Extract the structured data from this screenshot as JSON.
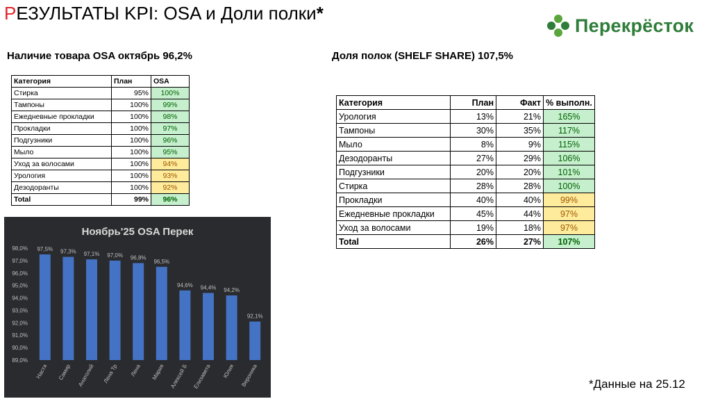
{
  "header": {
    "title_first_letter": "Р",
    "title_rest": "ЕЗУЛЬТАТЫ KPI: OSA и Доли полки",
    "title_star": "*"
  },
  "logo": {
    "text": "Перекрёсток",
    "icon": "clover-logo-icon",
    "color": "#2f7d3a"
  },
  "osa": {
    "title": "Наличие товара OSA октябрь 96,2%",
    "headers": {
      "category": "Категория",
      "plan": "План",
      "osa": "OSA"
    },
    "rows": [
      {
        "category": "Стирка",
        "plan": "95%",
        "osa": "100%",
        "status": "green"
      },
      {
        "category": "Тампоны",
        "plan": "100%",
        "osa": "99%",
        "status": "green"
      },
      {
        "category": "Ежедневные прокладки",
        "plan": "100%",
        "osa": "98%",
        "status": "green"
      },
      {
        "category": "Прокладки",
        "plan": "100%",
        "osa": "97%",
        "status": "green"
      },
      {
        "category": "Подгузники",
        "plan": "100%",
        "osa": "96%",
        "status": "green"
      },
      {
        "category": "Мыло",
        "plan": "100%",
        "osa": "95%",
        "status": "green"
      },
      {
        "category": "Уход за волосами",
        "plan": "100%",
        "osa": "94%",
        "status": "yellow"
      },
      {
        "category": "Урология",
        "plan": "100%",
        "osa": "93%",
        "status": "yellow"
      },
      {
        "category": "Дезодоранты",
        "plan": "100%",
        "osa": "92%",
        "status": "yellow"
      }
    ],
    "total": {
      "category": "Total",
      "plan": "99%",
      "osa": "96%",
      "status": "green"
    }
  },
  "shelf": {
    "title": "Доля полок (SHELF SHARE) 107,5%",
    "headers": {
      "category": "Категория",
      "plan": "План",
      "fact": "Факт",
      "pct": "% выполн."
    },
    "rows": [
      {
        "category": "Урология",
        "plan": "13%",
        "fact": "21%",
        "pct": "165%",
        "status": "green"
      },
      {
        "category": "Тампоны",
        "plan": "30%",
        "fact": "35%",
        "pct": "117%",
        "status": "green"
      },
      {
        "category": "Мыло",
        "plan": "8%",
        "fact": "9%",
        "pct": "115%",
        "status": "green"
      },
      {
        "category": "Дезодоранты",
        "plan": "27%",
        "fact": "29%",
        "pct": "106%",
        "status": "green"
      },
      {
        "category": "Подгузники",
        "plan": "20%",
        "fact": "20%",
        "pct": "101%",
        "status": "green"
      },
      {
        "category": "Стирка",
        "plan": "28%",
        "fact": "28%",
        "pct": "100%",
        "status": "green"
      },
      {
        "category": "Прокладки",
        "plan": "40%",
        "fact": "40%",
        "pct": "99%",
        "status": "yellow"
      },
      {
        "category": "Ежедневные прокладки",
        "plan": "45%",
        "fact": "44%",
        "pct": "97%",
        "status": "yellow"
      },
      {
        "category": "Уход за волосами",
        "plan": "19%",
        "fact": "18%",
        "pct": "97%",
        "status": "yellow"
      }
    ],
    "total": {
      "category": "Total",
      "plan": "26%",
      "fact": "27%",
      "pct": "107%",
      "status": "green"
    }
  },
  "chart_data": {
    "type": "bar",
    "title": "Ноябрь'25 OSA Перек",
    "categories": [
      "Настя",
      "Самир",
      "Анатолий",
      "Лена Тр",
      "Лена",
      "Мария",
      "Алексей Б",
      "Елизавета",
      "Юлия",
      "Вероника"
    ],
    "values": [
      97.5,
      97.3,
      97.1,
      97.0,
      96.8,
      96.5,
      94.6,
      94.4,
      94.2,
      92.1
    ],
    "value_labels": [
      "97,5%",
      "97,3%",
      "97,1%",
      "97,0%",
      "96,8%",
      "96,5%",
      "94,6%",
      "94,4%",
      "94,2%",
      "92,1%"
    ],
    "yticks": [
      89,
      90,
      91,
      92,
      93,
      94,
      95,
      96,
      97,
      98
    ],
    "ytick_labels": [
      "89,0%",
      "90,0%",
      "91,0%",
      "92,0%",
      "93,0%",
      "94,0%",
      "95,0%",
      "96,0%",
      "97,0%",
      "98,0%"
    ],
    "ylim": [
      89,
      98
    ],
    "grid": false,
    "colors": {
      "bar": "#4472c4",
      "background": "#2a2b2e",
      "text": "#bfbfbf",
      "title": "#d9d9d9"
    }
  },
  "footnote": "*Данные на 25.12"
}
